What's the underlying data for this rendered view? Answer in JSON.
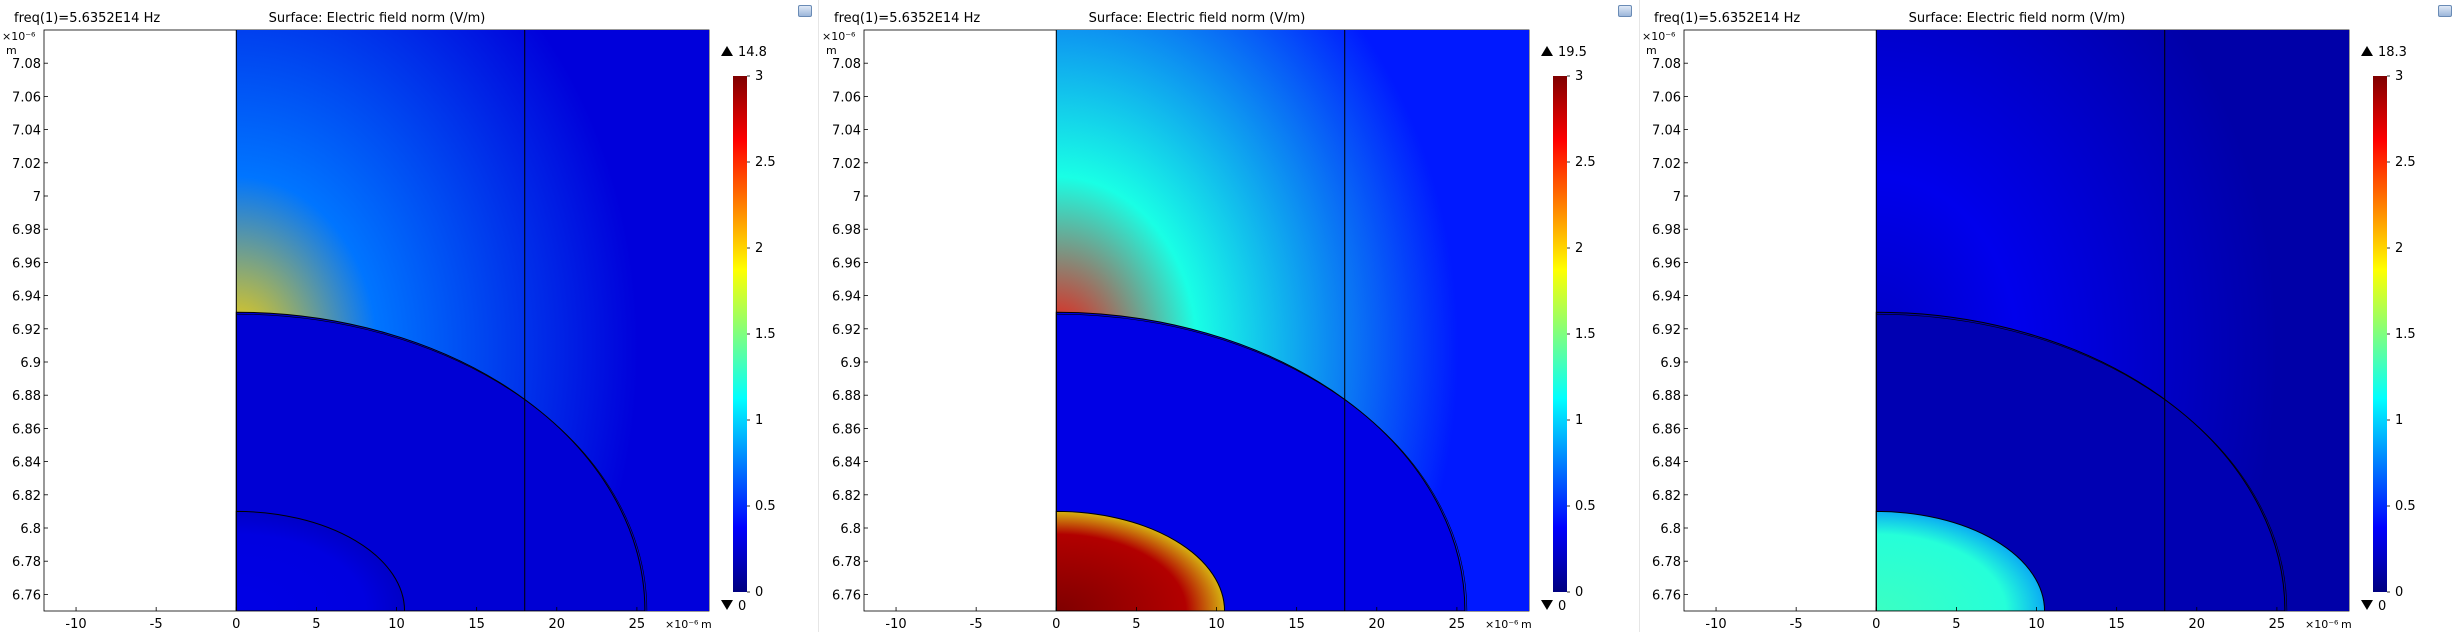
{
  "colors": {
    "colormap": [
      "#00007f",
      "#0000ff",
      "#007fff",
      "#00ffff",
      "#7fff7f",
      "#ffff00",
      "#ff7f00",
      "#ff0000",
      "#7f0000"
    ],
    "boundary": "#000000",
    "divider": "#e6e6e6"
  },
  "icons": [
    "screenshot-icon"
  ],
  "chart_data": [
    {
      "type": "heatmap",
      "header": "freq(1)=5.6352E14 Hz",
      "title": "Surface: Electric field norm (V/m)",
      "x_multiplier": "×10⁻⁶",
      "y_multiplier": "×10⁻⁶",
      "x_unit": "m",
      "y_unit": "m",
      "xlim": [
        -12,
        29.5
      ],
      "ylim": [
        6.75,
        7.1
      ],
      "x_ticks": [
        -10,
        -5,
        0,
        5,
        10,
        15,
        20,
        25
      ],
      "y_ticks": [
        6.76,
        6.78,
        6.8,
        6.82,
        6.84,
        6.86,
        6.88,
        6.9,
        6.92,
        6.94,
        6.96,
        6.98,
        7,
        7.02,
        7.04,
        7.06,
        7.08
      ],
      "y_tick_labels": [
        "6.76",
        "6.78",
        "6.8",
        "6.82",
        "6.84",
        "6.86",
        "6.88",
        "6.9",
        "6.92",
        "6.94",
        "6.96",
        "6.98",
        "7",
        "7.02",
        "7.04",
        "7.06",
        "7.08"
      ],
      "colorbar": {
        "min": 0,
        "max": 3,
        "ticks": [
          0,
          0.5,
          1,
          1.5,
          2,
          2.5,
          3
        ],
        "tick_labels": [
          "0",
          "0.5",
          "1",
          "1.5",
          "2",
          "2.5",
          "3"
        ],
        "max_value": "14.8",
        "min_value": "0"
      },
      "regions": {
        "inner_shell_value": 0.25,
        "core_value": 0.3,
        "hotspot_value": 2.0,
        "outer_value": 0.45
      }
    },
    {
      "type": "heatmap",
      "header": "freq(1)=5.6352E14 Hz",
      "title": "Surface: Electric field norm (V/m)",
      "x_multiplier": "×10⁻⁶",
      "y_multiplier": "×10⁻⁶",
      "x_unit": "m",
      "y_unit": "m",
      "xlim": [
        -12,
        29.5
      ],
      "ylim": [
        6.75,
        7.1
      ],
      "x_ticks": [
        -10,
        -5,
        0,
        5,
        10,
        15,
        20,
        25
      ],
      "y_ticks": [
        6.76,
        6.78,
        6.8,
        6.82,
        6.84,
        6.86,
        6.88,
        6.9,
        6.92,
        6.94,
        6.96,
        6.98,
        7,
        7.02,
        7.04,
        7.06,
        7.08
      ],
      "y_tick_labels": [
        "6.76",
        "6.78",
        "6.8",
        "6.82",
        "6.84",
        "6.86",
        "6.88",
        "6.9",
        "6.92",
        "6.94",
        "6.96",
        "6.98",
        "7",
        "7.02",
        "7.04",
        "7.06",
        "7.08"
      ],
      "colorbar": {
        "min": 0,
        "max": 3,
        "ticks": [
          0,
          0.5,
          1,
          1.5,
          2,
          2.5,
          3
        ],
        "tick_labels": [
          "0",
          "0.5",
          "1",
          "1.5",
          "2",
          "2.5",
          "3"
        ],
        "max_value": "19.5",
        "min_value": "0"
      },
      "regions": {
        "inner_shell_value": 0.3,
        "core_value": 3.0,
        "hotspot_value": 2.6,
        "outer_value": 0.75
      }
    },
    {
      "type": "heatmap",
      "header": "freq(1)=5.6352E14 Hz",
      "title": "Surface: Electric field norm (V/m)",
      "x_multiplier": "×10⁻⁶",
      "y_multiplier": "×10⁻⁶",
      "x_unit": "m",
      "y_unit": "m",
      "xlim": [
        -12,
        29.5
      ],
      "ylim": [
        6.75,
        7.1
      ],
      "x_ticks": [
        -10,
        -5,
        0,
        5,
        10,
        15,
        20,
        25
      ],
      "y_ticks": [
        6.76,
        6.78,
        6.8,
        6.82,
        6.84,
        6.86,
        6.88,
        6.9,
        6.92,
        6.94,
        6.96,
        6.98,
        7,
        7.02,
        7.04,
        7.06,
        7.08
      ],
      "y_tick_labels": [
        "6.76",
        "6.78",
        "6.8",
        "6.82",
        "6.84",
        "6.86",
        "6.88",
        "6.9",
        "6.92",
        "6.94",
        "6.96",
        "6.98",
        "7",
        "7.02",
        "7.04",
        "7.06",
        "7.08"
      ],
      "colorbar": {
        "min": 0,
        "max": 3,
        "ticks": [
          0,
          0.5,
          1,
          1.5,
          2,
          2.5,
          3
        ],
        "tick_labels": [
          "0",
          "0.5",
          "1",
          "1.5",
          "2",
          "2.5",
          "3"
        ],
        "max_value": "18.3",
        "min_value": "0"
      },
      "regions": {
        "inner_shell_value": 0.15,
        "core_value": 1.3,
        "hotspot_value": 0.2,
        "outer_value": 0.2
      }
    }
  ]
}
